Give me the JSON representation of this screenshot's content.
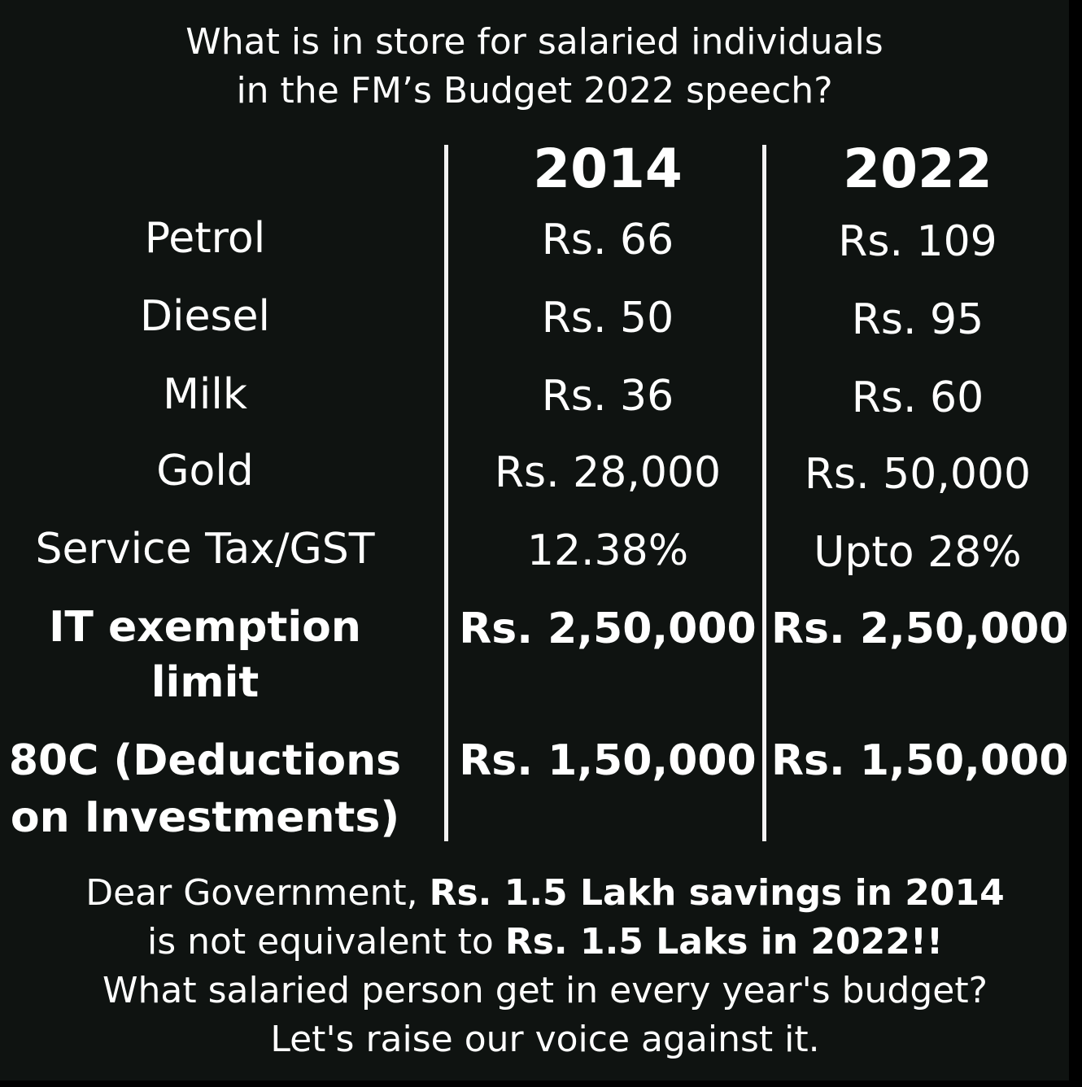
{
  "heading": {
    "line1": "What is in store for salaried individuals",
    "line2": "in the FM’s Budget 2022 speech?"
  },
  "columns": {
    "year_a": "2014",
    "year_b": "2022"
  },
  "rows": [
    {
      "label": "Petrol",
      "v2014": "Rs. 66",
      "v2022": "Rs. 109"
    },
    {
      "label": "Diesel",
      "v2014": "Rs. 50",
      "v2022": "Rs. 95"
    },
    {
      "label": "Milk",
      "v2014": "Rs. 36",
      "v2022": "Rs. 60"
    },
    {
      "label": "Gold",
      "v2014": "Rs. 28,000",
      "v2022": "Rs. 50,000"
    },
    {
      "label": "Service Tax/GST",
      "v2014": "12.38%",
      "v2022": "Upto 28%"
    },
    {
      "label_line1": "IT exemption",
      "label_line2": "limit",
      "v2014": "Rs. 2,50,000",
      "v2022": "Rs. 2,50,000"
    },
    {
      "label_line1": "80C (Deductions",
      "label_line2": "on Investments)",
      "v2014": "Rs. 1,50,000",
      "v2022": "Rs. 1,50,000"
    }
  ],
  "footer": {
    "line1_normal": "Dear Government, ",
    "line1_bold": "Rs. 1.5 Lakh savings in 2014",
    "line2_normal": "is not equivalent to ",
    "line2_bold": "Rs. 1.5 Laks in 2022!!",
    "line3": "What salaried person get in every year's budget?",
    "line4": "Let's raise our voice against it."
  },
  "colors": {
    "background": "#0f1311",
    "text": "#ffffff"
  }
}
